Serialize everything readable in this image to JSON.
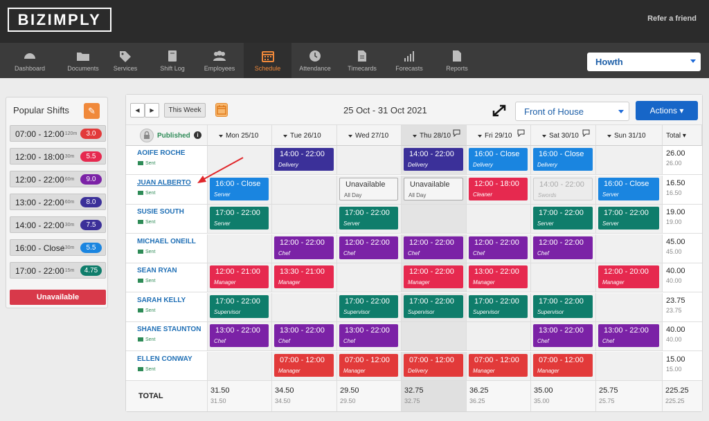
{
  "brand": "BIZIMPLY",
  "refer": "Refer a friend",
  "nav": [
    {
      "label": "Dashboard",
      "icon": "dashboard-icon"
    },
    {
      "label": "Documents",
      "icon": "folder-icon"
    },
    {
      "label": "Services",
      "icon": "tag-icon"
    },
    {
      "label": "Shift Log",
      "icon": "book-icon"
    },
    {
      "label": "Employees",
      "icon": "people-icon"
    },
    {
      "label": "Schedule",
      "icon": "calendar-icon",
      "active": true
    },
    {
      "label": "Attendance",
      "icon": "clock-icon"
    },
    {
      "label": "Timecards",
      "icon": "document-icon"
    },
    {
      "label": "Forecasts",
      "icon": "bar-chart-icon"
    },
    {
      "label": "Reports",
      "icon": "report-icon"
    }
  ],
  "location": "Howth",
  "popular": {
    "title": "Popular Shifts",
    "shifts": [
      {
        "time": "07:00 - 12:00",
        "dur": "| 120m",
        "hrs": "3.0",
        "color": "#e23a3a"
      },
      {
        "time": "12:00 - 18:00",
        "dur": "| 30m",
        "hrs": "5.5",
        "color": "#e6294f"
      },
      {
        "time": "12:00 - 22:00",
        "dur": "| 60m",
        "hrs": "9.0",
        "color": "#7b22a6"
      },
      {
        "time": "13:00 - 22:00",
        "dur": "| 60m",
        "hrs": "8.0",
        "color": "#3b3099"
      },
      {
        "time": "14:00 - 22:00",
        "dur": "| 30m",
        "hrs": "7.5",
        "color": "#3b3099"
      },
      {
        "time": "16:00 - Close",
        "dur": "| 30m",
        "hrs": "5.5",
        "color": "#1a85e0"
      },
      {
        "time": "17:00 - 22:00",
        "dur": "| 15m",
        "hrs": "4.75",
        "color": "#0f7d6b"
      }
    ],
    "unavailable": "Unavailable"
  },
  "toolbar": {
    "prev": "◀",
    "next": "▶",
    "this_week": "This Week",
    "week_range": "25 Oct - 31 Oct 2021",
    "department": "Front of House",
    "actions": "Actions ▾"
  },
  "header": {
    "published": "Published",
    "days": [
      "Mon 25/10",
      "Tue 26/10",
      "Wed 27/10",
      "Thu 28/10",
      "Fri 29/10",
      "Sat 30/10",
      "Sun 31/10"
    ],
    "total": "Total ▾"
  },
  "sent_label": "Sent",
  "employees": [
    {
      "name": "AOIFE ROCHE",
      "shifts": [
        null,
        {
          "t": "14:00 - 22:00",
          "r": "Delivery",
          "c": "#3b3099"
        },
        null,
        {
          "t": "14:00 - 22:00",
          "r": "Delivery",
          "c": "#3b3099"
        },
        {
          "t": "16:00 - Close",
          "r": "Delivery",
          "c": "#1a85e0"
        },
        {
          "t": "16:00 - Close",
          "r": "Delivery",
          "c": "#1a85e0"
        },
        null
      ],
      "total": "26.00",
      "total2": "26.00"
    },
    {
      "name": "JUAN ALBERTO",
      "shifts": [
        {
          "t": "16:00 - Close",
          "r": "Server",
          "c": "#1a85e0"
        },
        null,
        {
          "t": "Unavailable",
          "r": "All Day",
          "kind": "unav"
        },
        {
          "t": "Unavailable",
          "r": "All Day",
          "kind": "unav"
        },
        {
          "t": "12:00 - 18:00",
          "r": "Cleaner",
          "c": "#e6294f"
        },
        {
          "t": "14:00 - 22:00",
          "r": "Swords",
          "kind": "swords"
        },
        {
          "t": "16:00 - Close",
          "r": "Server",
          "c": "#1a85e0"
        }
      ],
      "total": "16.50",
      "total2": "16.50"
    },
    {
      "name": "SUSIE SOUTH",
      "shifts": [
        {
          "t": "17:00 - 22:00",
          "r": "Server",
          "c": "#0f7d6b"
        },
        null,
        {
          "t": "17:00 - 22:00",
          "r": "Server",
          "c": "#0f7d6b"
        },
        null,
        null,
        {
          "t": "17:00 - 22:00",
          "r": "Server",
          "c": "#0f7d6b"
        },
        {
          "t": "17:00 - 22:00",
          "r": "Server",
          "c": "#0f7d6b"
        }
      ],
      "total": "19.00",
      "total2": "19.00"
    },
    {
      "name": "MICHAEL ONEILL",
      "shifts": [
        null,
        {
          "t": "12:00 - 22:00",
          "r": "Chef",
          "c": "#7b22a6"
        },
        {
          "t": "12:00 - 22:00",
          "r": "Chef",
          "c": "#7b22a6"
        },
        {
          "t": "12:00 - 22:00",
          "r": "Chef",
          "c": "#7b22a6"
        },
        {
          "t": "12:00 - 22:00",
          "r": "Chef",
          "c": "#7b22a6"
        },
        {
          "t": "12:00 - 22:00",
          "r": "Chef",
          "c": "#7b22a6"
        },
        null
      ],
      "total": "45.00",
      "total2": "45.00"
    },
    {
      "name": "SEAN RYAN",
      "shifts": [
        {
          "t": "12:00 - 21:00",
          "r": "Manager",
          "c": "#e6294f"
        },
        {
          "t": "13:30 - 21:00",
          "r": "Manager",
          "c": "#e6294f"
        },
        null,
        {
          "t": "12:00 - 22:00",
          "r": "Manager",
          "c": "#e6294f"
        },
        {
          "t": "13:00 - 22:00",
          "r": "Manager",
          "c": "#e6294f"
        },
        null,
        {
          "t": "12:00 - 20:00",
          "r": "Manager",
          "c": "#e6294f"
        }
      ],
      "total": "40.00",
      "total2": "40.00"
    },
    {
      "name": "SARAH KELLY",
      "shifts": [
        {
          "t": "17:00 - 22:00",
          "r": "Supervisor",
          "c": "#0f7d6b"
        },
        null,
        {
          "t": "17:00 - 22:00",
          "r": "Supervisor",
          "c": "#0f7d6b"
        },
        {
          "t": "17:00 - 22:00",
          "r": "Supervisor",
          "c": "#0f7d6b"
        },
        {
          "t": "17:00 - 22:00",
          "r": "Supervisor",
          "c": "#0f7d6b"
        },
        {
          "t": "17:00 - 22:00",
          "r": "Supervisor",
          "c": "#0f7d6b"
        },
        null
      ],
      "total": "23.75",
      "total2": "23.75"
    },
    {
      "name": "SHANE STAUNTON",
      "shifts": [
        {
          "t": "13:00 - 22:00",
          "r": "Chef",
          "c": "#7b22a6"
        },
        {
          "t": "13:00 - 22:00",
          "r": "Chef",
          "c": "#7b22a6"
        },
        {
          "t": "13:00 - 22:00",
          "r": "Chef",
          "c": "#7b22a6"
        },
        null,
        null,
        {
          "t": "13:00 - 22:00",
          "r": "Chef",
          "c": "#7b22a6"
        },
        {
          "t": "13:00 - 22:00",
          "r": "Chef",
          "c": "#7b22a6"
        }
      ],
      "total": "40.00",
      "total2": "40.00"
    },
    {
      "name": "ELLEN CONWAY",
      "shifts": [
        null,
        {
          "t": "07:00 - 12:00",
          "r": "Manager",
          "c": "#e23a3a"
        },
        {
          "t": "07:00 - 12:00",
          "r": "Manager",
          "c": "#e23a3a"
        },
        {
          "t": "07:00 - 12:00",
          "r": "Delivery",
          "c": "#e23a3a"
        },
        {
          "t": "07:00 - 12:00",
          "r": "Manager",
          "c": "#e23a3a"
        },
        {
          "t": "07:00 - 12:00",
          "r": "Manager",
          "c": "#e23a3a"
        },
        null
      ],
      "total": "15.00",
      "total2": "15.00"
    }
  ],
  "footer": {
    "label": "TOTAL",
    "days": [
      [
        "31.50",
        "31.50"
      ],
      [
        "34.50",
        "34.50"
      ],
      [
        "29.50",
        "29.50"
      ],
      [
        "32.75",
        "32.75"
      ],
      [
        "36.25",
        "36.25"
      ],
      [
        "35.00",
        "35.00"
      ],
      [
        "25.75",
        "25.75"
      ]
    ],
    "total": [
      "225.25",
      "225.25"
    ]
  }
}
